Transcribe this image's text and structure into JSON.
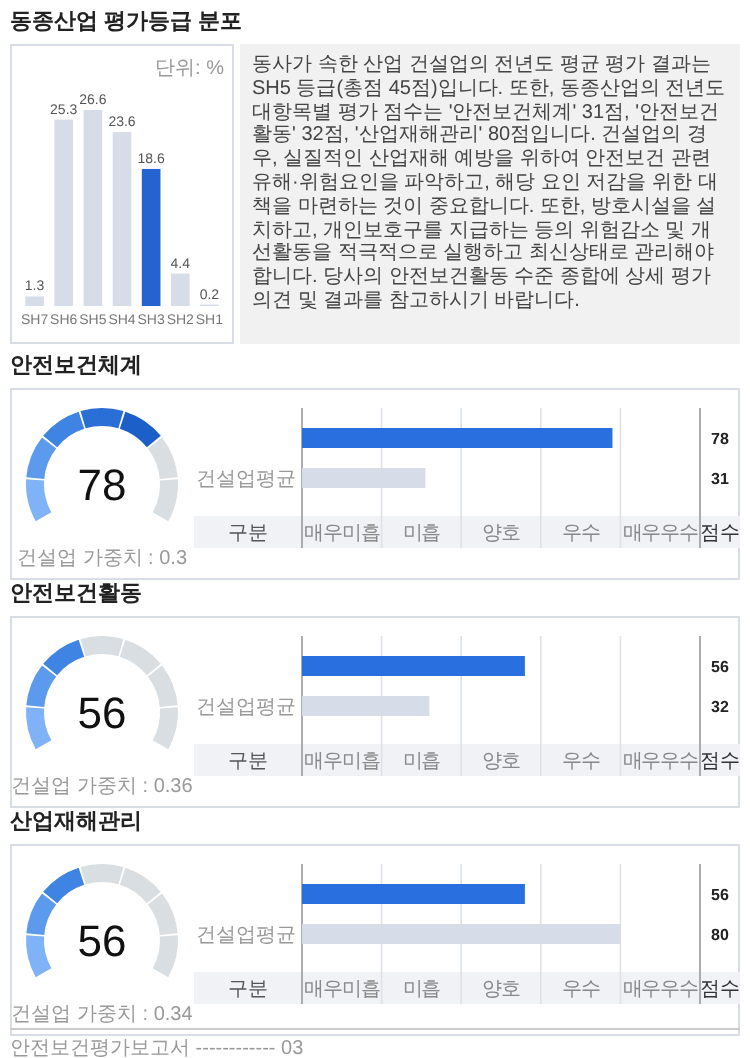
{
  "chart_data": [
    {
      "type": "bar",
      "title": "동종산업 평가등급 분포",
      "ylabel": "단위: %",
      "categories": [
        "SH7",
        "SH6",
        "SH5",
        "SH4",
        "SH3",
        "SH2",
        "SH1"
      ],
      "values": [
        1.3,
        25.3,
        26.6,
        23.6,
        18.6,
        4.4,
        0.2
      ],
      "colors": [
        "#d6dce8",
        "#d6dce8",
        "#d6dce8",
        "#d6dce8",
        "#2563d0",
        "#d6dce8",
        "#d6dce8"
      ],
      "data_labels": true
    },
    {
      "type": "other",
      "annotations": [
        "동사가 속한 산업 건설업의 전년도 평균 평가 결과는 SH5 등급(총점 45점)입니다. 또한, 동종산업의 전년도 대항목별 평가 점수는 '안전보건체계' 31점, '안전보건활동' 32점, '산업재해관리' 80점입니다. 건설업의 경우, 실질적인 산업재해 예방을 위하여 안전보건 관련 유해·위험요인을 파악하고, 해당 요인 저감을 위한 대책을 마련하는 것이 중요합니다. 또한, 방호시설을 설치하고, 개인보호구를 지급하는 등의 위험감소 및 개선활동을 적극적으로 실행하고 최신상태로 관리해야 합니다. 당사의 안전보건활동 수준 종합에 상세 평가 의견 및 결과를 참고하시기 바랍니다."
      ]
    },
    {
      "type": "other",
      "title": "안전보건체계",
      "values": [
        78
      ],
      "data_labels": true,
      "annotations": [
        "건설업 가중치 : 0.3"
      ]
    },
    {
      "type": "bar",
      "orientation": "horizontal",
      "categories": [
        null,
        "건설업평균"
      ],
      "values": [
        78,
        31
      ],
      "colors": [
        "#2a6fe0",
        "#d6dce8"
      ],
      "xlim": [
        0,
        100
      ],
      "data_labels": true,
      "annotations": [
        "구분",
        "매우미흡",
        "미흡",
        "양호",
        "우수",
        "매우우수",
        "점수"
      ]
    },
    {
      "type": "other",
      "title": "안전보건활동",
      "values": [
        56
      ],
      "data_labels": true,
      "annotations": [
        "건설업 가중치 : 0.36"
      ]
    },
    {
      "type": "bar",
      "orientation": "horizontal",
      "categories": [
        null,
        "건설업평균"
      ],
      "values": [
        56,
        32
      ],
      "colors": [
        "#2a6fe0",
        "#d6dce8"
      ],
      "xlim": [
        0,
        100
      ],
      "data_labels": true,
      "annotations": [
        "구분",
        "매우미흡",
        "미흡",
        "양호",
        "우수",
        "매우우수",
        "점수"
      ]
    },
    {
      "type": "other",
      "title": "산업재해관리",
      "values": [
        56
      ],
      "data_labels": true,
      "annotations": [
        "건설업 가중치 : 0.34"
      ]
    },
    {
      "type": "bar",
      "orientation": "horizontal",
      "categories": [
        null,
        "건설업평균"
      ],
      "values": [
        56,
        80
      ],
      "colors": [
        "#2a6fe0",
        "#d6dce8"
      ],
      "xlim": [
        0,
        100
      ],
      "data_labels": true,
      "annotations": [
        "구분",
        "매우미흡",
        "미흡",
        "양호",
        "우수",
        "매우우수",
        "점수"
      ]
    },
    {
      "type": "other",
      "annotations": [
        "안전보건평가보고서 ------------ 03"
      ]
    }
  ]
}
